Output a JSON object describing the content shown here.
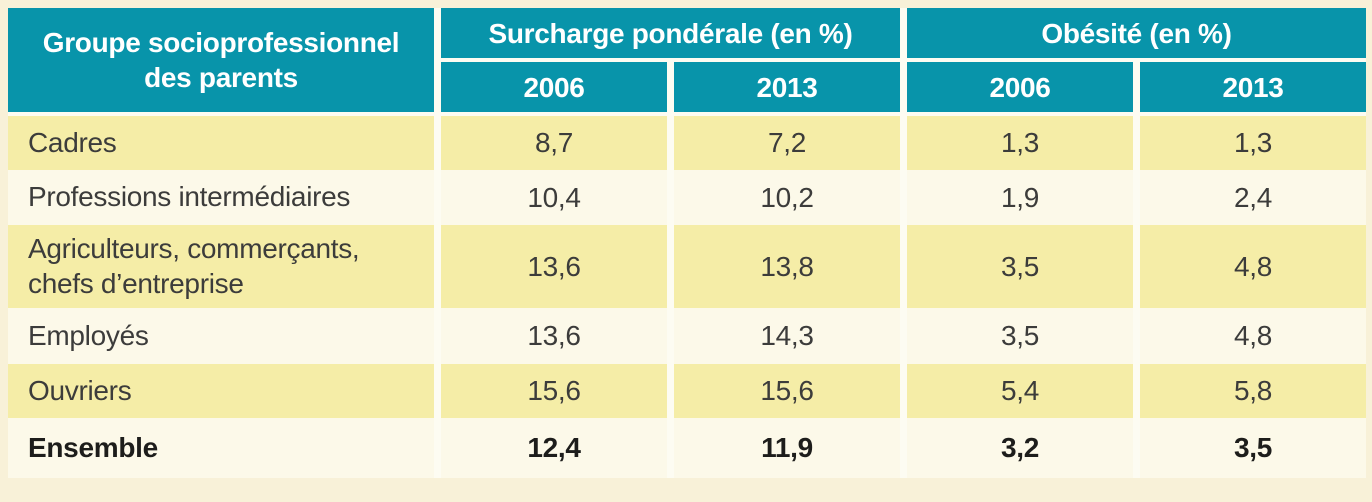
{
  "chart_data": {
    "type": "table",
    "header": {
      "group_label": "Groupe socioprofessionnel des parents",
      "col_groups": [
        {
          "label": "Surcharge pondérale (en %)",
          "years": [
            "2006",
            "2013"
          ]
        },
        {
          "label": "Obésité (en %)",
          "years": [
            "2006",
            "2013"
          ]
        }
      ]
    },
    "rows": [
      {
        "label": "Cadres",
        "values": [
          "8,7",
          "7,2",
          "1,3",
          "1,3"
        ]
      },
      {
        "label": "Professions intermédiaires",
        "values": [
          "10,4",
          "10,2",
          "1,9",
          "2,4"
        ]
      },
      {
        "label": "Agriculteurs, commerçants, chefs d’entreprise",
        "values": [
          "13,6",
          "13,8",
          "3,5",
          "4,8"
        ]
      },
      {
        "label": "Employés",
        "values": [
          "13,6",
          "14,3",
          "3,5",
          "4,8"
        ]
      },
      {
        "label": "Ouvriers",
        "values": [
          "15,6",
          "15,6",
          "5,4",
          "5,8"
        ]
      },
      {
        "label": "Ensemble",
        "values": [
          "12,4",
          "11,9",
          "3,2",
          "3,5"
        ],
        "bold": true
      }
    ],
    "layout": {
      "decimal_separator": ",",
      "row_striping": [
        "yellow",
        "cream",
        "yellow",
        "cream",
        "yellow",
        "cream"
      ]
    },
    "colors": {
      "header_bg": "#0894AA",
      "header_text": "#FFFFFF",
      "row_yellow": "#F5EDA7",
      "row_cream": "#FCF9E9",
      "page_bg": "#F8F1D8",
      "separator": "#FDFCF2",
      "text": "#3C3C3B",
      "bold_text": "#1D1D1B"
    }
  }
}
